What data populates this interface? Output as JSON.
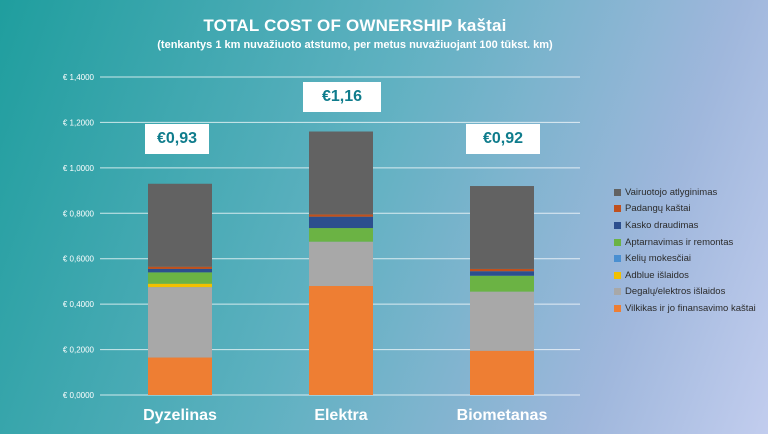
{
  "title": "TOTAL COST OF OWNERSHIP kaštai",
  "subtitle": "(tenkantys 1 km nuvažiuoto atstumo, per metus nuvažiuojant 100 tūkst. km)",
  "colors": {
    "vairuotojo": "#626262",
    "padangu": "#c0501d",
    "kasko": "#2c4f8e",
    "aptarnavimas": "#6bb344",
    "keliu": "#4a8fd1",
    "adblue": "#f2c000",
    "degalu": "#a8a8a8",
    "vilkikas": "#ee7e33"
  },
  "totals": [
    "€0,93",
    "€1,16",
    "€0,92"
  ],
  "chart_data": {
    "type": "bar",
    "stacked": true,
    "title": "TOTAL COST OF OWNERSHIP kaštai",
    "subtitle": "(tenkantys 1 km nuvažiuoto atstumo, per metus nuvažiuojant 100 tūkst. km)",
    "categories": [
      "Dyzelinas",
      "Elektra",
      "Biometanas"
    ],
    "ylim": [
      0,
      1.4
    ],
    "yticks": [
      "€ 0,0000",
      "€ 0,2000",
      "€ 0,4000",
      "€ 0,6000",
      "€ 0,8000",
      "€ 1,0000",
      "€ 1,2000",
      "€ 1,4000"
    ],
    "grid": true,
    "legend_position": "right",
    "series": [
      {
        "name": "Vilkikas ir jo finansavimo kaštai",
        "color_key": "vilkikas",
        "values": [
          0.165,
          0.48,
          0.195
        ]
      },
      {
        "name": "Degalų/elektros išlaidos",
        "color_key": "degalu",
        "values": [
          0.31,
          0.195,
          0.26
        ]
      },
      {
        "name": "Adblue išlaidos",
        "color_key": "adblue",
        "values": [
          0.015,
          0.0,
          0.0
        ]
      },
      {
        "name": "Kelių mokesčiai",
        "color_key": "keliu",
        "values": [
          0.0,
          0.0,
          0.0
        ]
      },
      {
        "name": "Aptarnavimas ir remontas",
        "color_key": "aptarnavimas",
        "values": [
          0.05,
          0.06,
          0.07
        ]
      },
      {
        "name": "Kasko draudimas",
        "color_key": "kasko",
        "values": [
          0.015,
          0.05,
          0.02
        ]
      },
      {
        "name": "Padangų kaštai",
        "color_key": "padangu",
        "values": [
          0.01,
          0.01,
          0.01
        ]
      },
      {
        "name": "Vairuotojo atlyginimas",
        "color_key": "vairuotojo",
        "values": [
          0.365,
          0.365,
          0.365
        ]
      }
    ]
  }
}
